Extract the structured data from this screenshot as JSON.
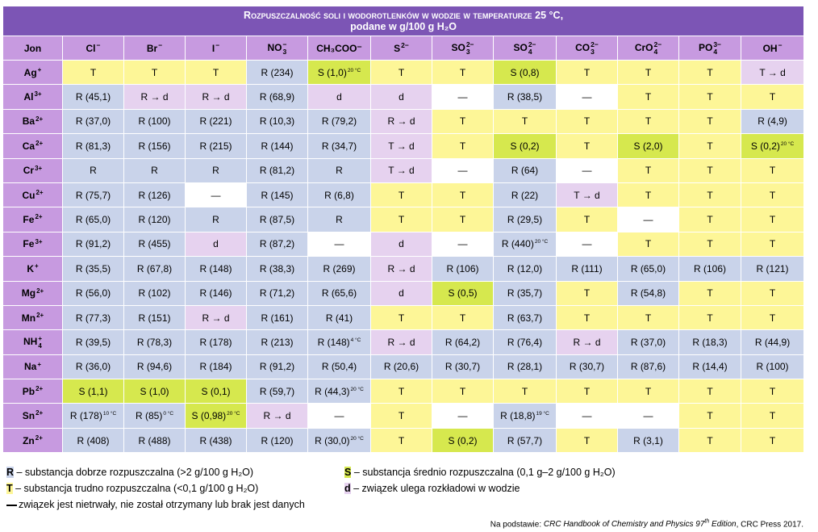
{
  "title": {
    "line1": "Rozpuszczalność soli i wodorotlenków w wodzie w temperaturze 25 °C,",
    "line2": "podane w g/100 g H₂O"
  },
  "columns": [
    {
      "main": "Jon",
      "sub": "",
      "sup": ""
    },
    {
      "main": "Cl",
      "sub": "",
      "sup": "−"
    },
    {
      "main": "Br",
      "sub": "",
      "sup": "−"
    },
    {
      "main": "I",
      "sub": "",
      "sup": "−"
    },
    {
      "main": "NO",
      "sub": "3",
      "sup": "−"
    },
    {
      "main": "CH₃COO⁻",
      "sub": "",
      "sup": ""
    },
    {
      "main": "S",
      "sub": "",
      "sup": "2−"
    },
    {
      "main": "SO",
      "sub": "3",
      "sup": "2−"
    },
    {
      "main": "SO",
      "sub": "4",
      "sup": "2−"
    },
    {
      "main": "CO",
      "sub": "3",
      "sup": "2−"
    },
    {
      "main": "CrO",
      "sub": "4",
      "sup": "2−"
    },
    {
      "main": "PO",
      "sub": "4",
      "sup": "3−"
    },
    {
      "main": "OH",
      "sub": "",
      "sup": "−"
    }
  ],
  "rows": [
    {
      "ion": "Ag",
      "sub": "",
      "sup": "+",
      "cells": [
        {
          "t": "T",
          "v": "T"
        },
        {
          "t": "T",
          "v": "T"
        },
        {
          "t": "T",
          "v": "T"
        },
        {
          "t": "R",
          "v": "R (234)"
        },
        {
          "t": "S",
          "v": "S (1,0)",
          "note": "20 °C"
        },
        {
          "t": "T",
          "v": "T"
        },
        {
          "t": "T",
          "v": "T"
        },
        {
          "t": "S",
          "v": "S (0,8)"
        },
        {
          "t": "T",
          "v": "T"
        },
        {
          "t": "T",
          "v": "T"
        },
        {
          "t": "T",
          "v": "T"
        },
        {
          "t": "D",
          "v": "T → d"
        }
      ]
    },
    {
      "ion": "Al",
      "sub": "",
      "sup": "3+",
      "cells": [
        {
          "t": "R",
          "v": "R (45,1)"
        },
        {
          "t": "D",
          "v": "R → d"
        },
        {
          "t": "D",
          "v": "R → d"
        },
        {
          "t": "R",
          "v": "R (68,9)"
        },
        {
          "t": "D",
          "v": "d"
        },
        {
          "t": "D",
          "v": "d"
        },
        {
          "t": "N",
          "v": "—"
        },
        {
          "t": "R",
          "v": "R (38,5)"
        },
        {
          "t": "N",
          "v": "—"
        },
        {
          "t": "T",
          "v": "T"
        },
        {
          "t": "T",
          "v": "T"
        },
        {
          "t": "T",
          "v": "T"
        }
      ]
    },
    {
      "ion": "Ba",
      "sub": "",
      "sup": "2+",
      "cells": [
        {
          "t": "R",
          "v": "R (37,0)"
        },
        {
          "t": "R",
          "v": "R (100)"
        },
        {
          "t": "R",
          "v": "R (221)"
        },
        {
          "t": "R",
          "v": "R (10,3)"
        },
        {
          "t": "R",
          "v": "R (79,2)"
        },
        {
          "t": "D",
          "v": "R → d"
        },
        {
          "t": "T",
          "v": "T"
        },
        {
          "t": "T",
          "v": "T"
        },
        {
          "t": "T",
          "v": "T"
        },
        {
          "t": "T",
          "v": "T"
        },
        {
          "t": "T",
          "v": "T"
        },
        {
          "t": "R",
          "v": "R (4,9)"
        }
      ]
    },
    {
      "ion": "Ca",
      "sub": "",
      "sup": "2+",
      "cells": [
        {
          "t": "R",
          "v": "R (81,3)"
        },
        {
          "t": "R",
          "v": "R (156)"
        },
        {
          "t": "R",
          "v": "R (215)"
        },
        {
          "t": "R",
          "v": "R (144)"
        },
        {
          "t": "R",
          "v": "R (34,7)"
        },
        {
          "t": "D",
          "v": "T → d"
        },
        {
          "t": "T",
          "v": "T"
        },
        {
          "t": "S",
          "v": "S (0,2)"
        },
        {
          "t": "T",
          "v": "T"
        },
        {
          "t": "S",
          "v": "S (2,0)"
        },
        {
          "t": "T",
          "v": "T"
        },
        {
          "t": "S",
          "v": "S (0,2)",
          "note": "20 °C"
        }
      ]
    },
    {
      "ion": "Cr",
      "sub": "",
      "sup": "3+",
      "cells": [
        {
          "t": "R",
          "v": "R"
        },
        {
          "t": "R",
          "v": "R"
        },
        {
          "t": "R",
          "v": "R"
        },
        {
          "t": "R",
          "v": "R (81,2)"
        },
        {
          "t": "R",
          "v": "R"
        },
        {
          "t": "D",
          "v": "T → d"
        },
        {
          "t": "N",
          "v": "—"
        },
        {
          "t": "R",
          "v": "R (64)"
        },
        {
          "t": "N",
          "v": "—"
        },
        {
          "t": "T",
          "v": "T"
        },
        {
          "t": "T",
          "v": "T"
        },
        {
          "t": "T",
          "v": "T"
        }
      ]
    },
    {
      "ion": "Cu",
      "sub": "",
      "sup": "2+",
      "cells": [
        {
          "t": "R",
          "v": "R (75,7)"
        },
        {
          "t": "R",
          "v": "R (126)"
        },
        {
          "t": "N",
          "v": "—"
        },
        {
          "t": "R",
          "v": "R (145)"
        },
        {
          "t": "R",
          "v": "R (6,8)"
        },
        {
          "t": "T",
          "v": "T"
        },
        {
          "t": "T",
          "v": "T"
        },
        {
          "t": "R",
          "v": "R (22)"
        },
        {
          "t": "D",
          "v": "T → d"
        },
        {
          "t": "T",
          "v": "T"
        },
        {
          "t": "T",
          "v": "T"
        },
        {
          "t": "T",
          "v": "T"
        }
      ]
    },
    {
      "ion": "Fe",
      "sub": "",
      "sup": "2+",
      "cells": [
        {
          "t": "R",
          "v": "R (65,0)"
        },
        {
          "t": "R",
          "v": "R (120)"
        },
        {
          "t": "R",
          "v": "R"
        },
        {
          "t": "R",
          "v": "R (87,5)"
        },
        {
          "t": "R",
          "v": "R"
        },
        {
          "t": "T",
          "v": "T"
        },
        {
          "t": "T",
          "v": "T"
        },
        {
          "t": "R",
          "v": "R (29,5)"
        },
        {
          "t": "T",
          "v": "T"
        },
        {
          "t": "N",
          "v": "—"
        },
        {
          "t": "T",
          "v": "T"
        },
        {
          "t": "T",
          "v": "T"
        }
      ]
    },
    {
      "ion": "Fe",
      "sub": "",
      "sup": "3+",
      "cells": [
        {
          "t": "R",
          "v": "R (91,2)"
        },
        {
          "t": "R",
          "v": "R (455)"
        },
        {
          "t": "D",
          "v": "d"
        },
        {
          "t": "R",
          "v": "R (87,2)"
        },
        {
          "t": "N",
          "v": "—"
        },
        {
          "t": "D",
          "v": "d"
        },
        {
          "t": "N",
          "v": "—"
        },
        {
          "t": "R",
          "v": "R (440)",
          "note": "20 °C"
        },
        {
          "t": "N",
          "v": "—"
        },
        {
          "t": "T",
          "v": "T"
        },
        {
          "t": "T",
          "v": "T"
        },
        {
          "t": "T",
          "v": "T"
        }
      ]
    },
    {
      "ion": "K",
      "sub": "",
      "sup": "+",
      "cells": [
        {
          "t": "R",
          "v": "R (35,5)"
        },
        {
          "t": "R",
          "v": "R (67,8)"
        },
        {
          "t": "R",
          "v": "R (148)"
        },
        {
          "t": "R",
          "v": "R (38,3)"
        },
        {
          "t": "R",
          "v": "R (269)"
        },
        {
          "t": "D",
          "v": "R → d"
        },
        {
          "t": "R",
          "v": "R (106)"
        },
        {
          "t": "R",
          "v": "R (12,0)"
        },
        {
          "t": "R",
          "v": "R (111)"
        },
        {
          "t": "R",
          "v": "R (65,0)"
        },
        {
          "t": "R",
          "v": "R (106)"
        },
        {
          "t": "R",
          "v": "R (121)"
        }
      ]
    },
    {
      "ion": "Mg",
      "sub": "",
      "sup": "2+",
      "cells": [
        {
          "t": "R",
          "v": "R (56,0)"
        },
        {
          "t": "R",
          "v": "R (102)"
        },
        {
          "t": "R",
          "v": "R (146)"
        },
        {
          "t": "R",
          "v": "R (71,2)"
        },
        {
          "t": "R",
          "v": "R (65,6)"
        },
        {
          "t": "D",
          "v": "d"
        },
        {
          "t": "S",
          "v": "S (0,5)"
        },
        {
          "t": "R",
          "v": "R (35,7)"
        },
        {
          "t": "T",
          "v": "T"
        },
        {
          "t": "R",
          "v": "R (54,8)"
        },
        {
          "t": "T",
          "v": "T"
        },
        {
          "t": "T",
          "v": "T"
        }
      ]
    },
    {
      "ion": "Mn",
      "sub": "",
      "sup": "2+",
      "cells": [
        {
          "t": "R",
          "v": "R (77,3)"
        },
        {
          "t": "R",
          "v": "R (151)"
        },
        {
          "t": "D",
          "v": "R → d"
        },
        {
          "t": "R",
          "v": "R (161)"
        },
        {
          "t": "R",
          "v": "R (41)"
        },
        {
          "t": "T",
          "v": "T"
        },
        {
          "t": "T",
          "v": "T"
        },
        {
          "t": "R",
          "v": "R (63,7)"
        },
        {
          "t": "T",
          "v": "T"
        },
        {
          "t": "T",
          "v": "T"
        },
        {
          "t": "T",
          "v": "T"
        },
        {
          "t": "T",
          "v": "T"
        }
      ]
    },
    {
      "ion": "NH",
      "sub": "4",
      "sup": "+",
      "cells": [
        {
          "t": "R",
          "v": "R (39,5)"
        },
        {
          "t": "R",
          "v": "R (78,3)"
        },
        {
          "t": "R",
          "v": "R (178)"
        },
        {
          "t": "R",
          "v": "R (213)"
        },
        {
          "t": "R",
          "v": "R (148)",
          "note": "4 °C"
        },
        {
          "t": "D",
          "v": "R → d"
        },
        {
          "t": "R",
          "v": "R (64,2)"
        },
        {
          "t": "R",
          "v": "R (76,4)"
        },
        {
          "t": "D",
          "v": "R → d"
        },
        {
          "t": "R",
          "v": "R (37,0)"
        },
        {
          "t": "R",
          "v": "R (18,3)"
        },
        {
          "t": "R",
          "v": "R (44,9)"
        }
      ]
    },
    {
      "ion": "Na",
      "sub": "",
      "sup": "+",
      "cells": [
        {
          "t": "R",
          "v": "R (36,0)"
        },
        {
          "t": "R",
          "v": "R (94,6)"
        },
        {
          "t": "R",
          "v": "R (184)"
        },
        {
          "t": "R",
          "v": "R (91,2)"
        },
        {
          "t": "R",
          "v": "R (50,4)"
        },
        {
          "t": "R",
          "v": "R (20,6)"
        },
        {
          "t": "R",
          "v": "R (30,7)"
        },
        {
          "t": "R",
          "v": "R (28,1)"
        },
        {
          "t": "R",
          "v": "R (30,7)"
        },
        {
          "t": "R",
          "v": "R (87,6)"
        },
        {
          "t": "R",
          "v": "R (14,4)"
        },
        {
          "t": "R",
          "v": "R (100)"
        }
      ]
    },
    {
      "ion": "Pb",
      "sub": "",
      "sup": "2+",
      "cells": [
        {
          "t": "S",
          "v": "S (1,1)"
        },
        {
          "t": "S",
          "v": "S (1,0)"
        },
        {
          "t": "S",
          "v": "S (0,1)"
        },
        {
          "t": "R",
          "v": "R (59,7)"
        },
        {
          "t": "R",
          "v": "R (44,3)",
          "note": "20 °C"
        },
        {
          "t": "T",
          "v": "T"
        },
        {
          "t": "T",
          "v": "T"
        },
        {
          "t": "T",
          "v": "T"
        },
        {
          "t": "T",
          "v": "T"
        },
        {
          "t": "T",
          "v": "T"
        },
        {
          "t": "T",
          "v": "T"
        },
        {
          "t": "T",
          "v": "T"
        }
      ]
    },
    {
      "ion": "Sn",
      "sub": "",
      "sup": "2+",
      "cells": [
        {
          "t": "R",
          "v": "R (178)",
          "note": "10 °C"
        },
        {
          "t": "R",
          "v": "R (85)",
          "note": "0 °C"
        },
        {
          "t": "S",
          "v": "S (0,98)",
          "note": "20 °C"
        },
        {
          "t": "D",
          "v": "R → d"
        },
        {
          "t": "N",
          "v": "—"
        },
        {
          "t": "T",
          "v": "T"
        },
        {
          "t": "N",
          "v": "—"
        },
        {
          "t": "R",
          "v": "R (18,8)",
          "note": "19 °C"
        },
        {
          "t": "N",
          "v": "—"
        },
        {
          "t": "N",
          "v": "—"
        },
        {
          "t": "T",
          "v": "T"
        },
        {
          "t": "T",
          "v": "T"
        }
      ]
    },
    {
      "ion": "Zn",
      "sub": "",
      "sup": "2+",
      "cells": [
        {
          "t": "R",
          "v": "R (408)"
        },
        {
          "t": "R",
          "v": "R (488)"
        },
        {
          "t": "R",
          "v": "R (438)"
        },
        {
          "t": "R",
          "v": "R (120)"
        },
        {
          "t": "R",
          "v": "R (30,0)",
          "note": "20 °C"
        },
        {
          "t": "T",
          "v": "T"
        },
        {
          "t": "S",
          "v": "S (0,2)"
        },
        {
          "t": "R",
          "v": "R (57,7)"
        },
        {
          "t": "T",
          "v": "T"
        },
        {
          "t": "R",
          "v": "R (3,1)"
        },
        {
          "t": "T",
          "v": "T"
        },
        {
          "t": "T",
          "v": "T"
        }
      ]
    }
  ],
  "legend": {
    "R": {
      "key": "R",
      "text": " – substancja dobrze rozpuszczalna (>2 g/100 g H₂O)"
    },
    "S": {
      "key": "S",
      "text": " – substancja średnio rozpuszczalna (0,1 g–2 g/100 g H₂O)"
    },
    "T": {
      "key": "T",
      "text": " – substancja trudno rozpuszczalna (<0,1 g/100 g H₂O)"
    },
    "D": {
      "key": "d",
      "text": " – związek ulega rozkładowi w wodzie"
    },
    "N": {
      "text": "związek jest nietrwały, nie został otrzymany lub brak jest danych"
    }
  },
  "source": {
    "prefix": "Na podstawie: ",
    "title": "CRC Handbook of Chemistry and Physics 97",
    "title_sup": "th",
    "title_suffix": " Edition",
    "publisher": ", CRC Press 2017."
  },
  "colors": {
    "title_bg": "#7c55b5",
    "header_bg": "#c79ae0",
    "R": "#c9d3ea",
    "T": "#fdf697",
    "S": "#d6e84e",
    "d": "#e6d2ef",
    "none": "#ffffff"
  }
}
